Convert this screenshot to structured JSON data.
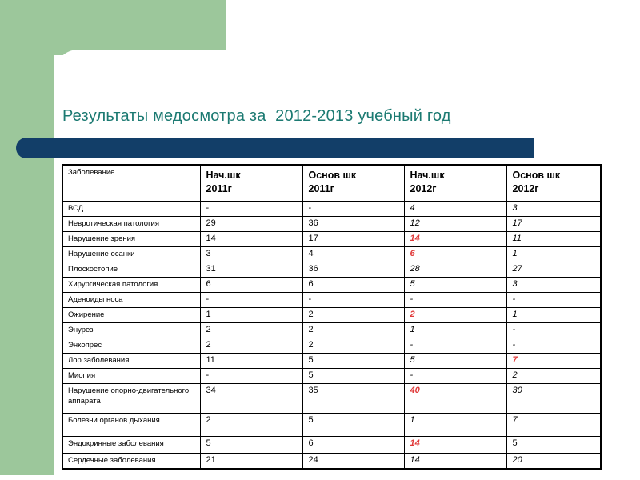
{
  "slide": {
    "title": "Результаты медосмотра за  2012-2013 учебный год"
  },
  "colors": {
    "template_green": "#9cc79b",
    "accent_bar_navy": "#123e68",
    "title_teal": "#1c7a72",
    "highlight_red": "#e03a3a"
  },
  "table": {
    "columns": [
      "Заболевание",
      "Нач.шк\n2011г",
      "Основ шк\n2011г",
      "Нач.шк\n2012г",
      "Основ шк\n2012г"
    ],
    "rows": [
      {
        "label": "ВСД",
        "values": [
          "-",
          "-",
          "4",
          "3"
        ],
        "red": []
      },
      {
        "label": "Невротическая патология",
        "values": [
          "29",
          "36",
          "12",
          "17"
        ],
        "red": []
      },
      {
        "label": "Нарушение зрения",
        "values": [
          "14",
          "17",
          "14",
          "11"
        ],
        "red": [
          2
        ]
      },
      {
        "label": "Нарушение осанки",
        "values": [
          "3",
          "4",
          "6",
          "1"
        ],
        "red": [
          2
        ]
      },
      {
        "label": "Плоскостопие",
        "values": [
          "31",
          "36",
          "28",
          "27"
        ],
        "red": []
      },
      {
        "label": "Хирургическая патология",
        "values": [
          "6",
          "6",
          "5",
          "3"
        ],
        "red": []
      },
      {
        "label": "Аденоиды носа",
        "values": [
          "-",
          "-",
          "-",
          "-"
        ],
        "red": []
      },
      {
        "label": "Ожирение",
        "values": [
          "1",
          "2",
          "2",
          "1"
        ],
        "red": [
          2
        ]
      },
      {
        "label": "Энурез",
        "values": [
          "2",
          "2",
          "1",
          "-"
        ],
        "red": []
      },
      {
        "label": "Энкопрес",
        "values": [
          "2",
          "2",
          "-",
          "-"
        ],
        "red": []
      },
      {
        "label": "Лор заболевания",
        "values": [
          "11",
          "5",
          "5",
          "7"
        ],
        "red": [
          3
        ]
      },
      {
        "label": "Миопия",
        "values": [
          "-",
          "5",
          "-",
          "2"
        ],
        "red": []
      },
      {
        "label": "Нарушение опорно-двигательного аппарата",
        "values": [
          "34",
          "35",
          "40",
          "30"
        ],
        "red": [
          2
        ]
      },
      {
        "label": "Болезни органов дыхания",
        "values": [
          "2",
          "5",
          "1",
          "7"
        ],
        "red": []
      },
      {
        "label": "Эндокринные заболевания",
        "values": [
          "5",
          "6",
          "14",
          "5"
        ],
        "red": [
          2
        ],
        "upright": [
          3
        ]
      },
      {
        "label": "Сердечные заболевания",
        "values": [
          "21",
          "24",
          "14",
          "20"
        ],
        "red": []
      }
    ]
  }
}
